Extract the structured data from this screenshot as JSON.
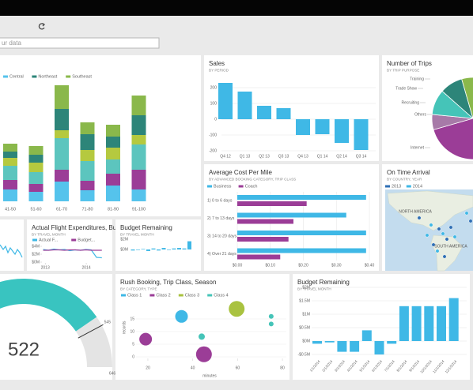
{
  "search": {
    "placeholder": "ur data"
  },
  "chart_data": [
    {
      "type": "stacked_bar",
      "categories": [
        "41-50",
        "51-60",
        "61-70",
        "71-80",
        "81-90",
        "91-100"
      ],
      "ylim": [
        0,
        150
      ],
      "series": [
        {
          "name": "Central",
          "color": "#55c3ec",
          "values": [
            15,
            12,
            25,
            14,
            20,
            15
          ]
        },
        {
          "color": "#9b3d97",
          "values": [
            12,
            10,
            15,
            12,
            15,
            25
          ]
        },
        {
          "color": "#5cc5be",
          "values": [
            18,
            15,
            40,
            25,
            18,
            32
          ]
        },
        {
          "color": "#b5c93f",
          "values": [
            10,
            12,
            10,
            14,
            15,
            12
          ]
        },
        {
          "name": "Northeast",
          "color": "#2d8579",
          "values": [
            8,
            10,
            27,
            20,
            14,
            25
          ]
        },
        {
          "name": "Southeast",
          "color": "#8ab84b",
          "values": [
            10,
            11,
            30,
            15,
            15,
            25
          ]
        }
      ]
    },
    {
      "type": "bar",
      "title": "Sales",
      "subtitle": "BY PERIOD",
      "categories": [
        "Q4 12",
        "Q1 13",
        "Q2 13",
        "Q3 13",
        "Q4 13",
        "Q1 14",
        "Q2 14",
        "Q3 14"
      ],
      "values": [
        230,
        175,
        85,
        70,
        -100,
        -95,
        -150,
        -195
      ],
      "color": "#3fb8e6",
      "ylim": [
        -240,
        250
      ],
      "yticks": [
        200,
        100,
        0,
        -100,
        -200
      ],
      "grid": true
    },
    {
      "type": "pie",
      "title": "Number of Trips",
      "subtitle": "BY TRIP PURPOSE",
      "categories": [
        "Internet",
        "Others",
        "Recruiting",
        "Trade Show",
        "Training",
        null,
        null
      ],
      "values": [
        40,
        6,
        10,
        9,
        7,
        8,
        20
      ],
      "colors": [
        "#9b3d97",
        "#a77aa8",
        "#45c4b8",
        "#2d8579",
        "#8ab84b",
        "#3fb8e6",
        "#5c6bb0"
      ]
    },
    {
      "type": "hbar",
      "title": "Average Cost Per Mile",
      "subtitle": "BY ADVANCED BOOKING CATEGORY, TRIP CLASS",
      "categories": [
        "1) 0 to 6 days",
        "2) 7 to 13 days",
        "3) 14 to 20 days",
        "4) Over 21 days"
      ],
      "series": [
        {
          "name": "Business",
          "color": "#3fb8e6",
          "values": [
            0.39,
            0.33,
            0.39,
            0.39
          ]
        },
        {
          "name": "Coach",
          "color": "#9b3d97",
          "values": [
            0.21,
            0.17,
            0.155,
            0.13
          ]
        }
      ],
      "xlim": [
        0,
        0.4
      ],
      "xticks": [
        {
          "value": 0,
          "label": "$0.00"
        },
        {
          "value": 0.1,
          "label": "$0.10"
        },
        {
          "value": 0.2,
          "label": "$0.20"
        },
        {
          "value": 0.3,
          "label": "$0.30"
        },
        {
          "value": 0.4,
          "label": "$0.40"
        }
      ],
      "grid": true
    },
    {
      "type": "map",
      "title": "On Time Arrival",
      "subtitle": "BY COUNTRY, YEAR",
      "series": [
        {
          "name": "2013",
          "color": "#2f6fb5"
        },
        {
          "name": "2014",
          "color": "#3fb8e6"
        }
      ],
      "annotations": [
        "NORTH AMERICA",
        "SOUTH AMERICA"
      ]
    },
    {
      "type": "line",
      "title": "Actual Flight Expenditures, Bu...",
      "subtitle": "BY TRAVEL MONTH",
      "x": [
        2012.95,
        2013.08,
        2013.21,
        2013.34,
        2013.47,
        2013.6,
        2013.73,
        2013.86,
        2013.99,
        2014.12,
        2014.25,
        2014.38
      ],
      "series": [
        {
          "name": "Actual F...",
          "color": "#3fb8e6",
          "values": [
            3200000,
            3000000,
            3300000,
            3100000,
            3200000,
            2900000,
            3100000,
            3000000,
            3200000,
            3100000,
            1200000,
            1100000
          ]
        },
        {
          "name": "Budget...",
          "color": "#9b3d97",
          "values": [
            3000000,
            3000000,
            3100000,
            3100000,
            3000000,
            3100000,
            3100000,
            3000000,
            3100000,
            3000000,
            3000000,
            3000000
          ]
        }
      ],
      "xlim": [
        2012.9,
        2014.5
      ],
      "xticks": [
        2013,
        2014
      ],
      "ylim": [
        0,
        4000000
      ],
      "yticks": [
        {
          "value": 4000000,
          "label": "$4M"
        },
        {
          "value": 2000000,
          "label": "$2M"
        },
        {
          "value": 0,
          "label": "$0M"
        }
      ]
    },
    {
      "type": "bar",
      "title": "Budget Remaining",
      "subtitle": "BY TRAVEL MONTH",
      "values": [
        -200000,
        -100000,
        100000,
        -300000,
        200000,
        -200000,
        300000,
        -100000,
        200000,
        300000,
        200000,
        1600000
      ],
      "color": "#3fb8e6",
      "ylim": [
        -1000000,
        2000000
      ],
      "yticks": [
        {
          "value": 2000000,
          "label": "$2M"
        },
        {
          "value": 0,
          "label": "$0M"
        }
      ]
    },
    {
      "type": "gauge",
      "value": 522,
      "target": 545,
      "max": 646,
      "color": "#39c4c0"
    },
    {
      "type": "scatter",
      "title": "Rush Booking, Trip Class, Season",
      "subtitle": "BY CATEGORY, TYPE",
      "xlabel": "minutes",
      "ylabel": "records",
      "series": [
        {
          "name": "Class 1",
          "color": "#3fb8e6",
          "x": [
            35
          ],
          "values": [
            16
          ],
          "size": [
            8
          ]
        },
        {
          "name": "Class 2",
          "color": "#9b3d97",
          "x": [
            19,
            45
          ],
          "values": [
            7,
            1
          ],
          "size": [
            8,
            10
          ]
        },
        {
          "name": "Class 3",
          "color": "#a9c23f",
          "x": [
            59.6
          ],
          "values": [
            19
          ],
          "size": [
            10
          ]
        },
        {
          "name": "Class 4",
          "color": "#45c4b8",
          "x": [
            44,
            75,
            75
          ],
          "values": [
            8,
            16,
            13
          ],
          "size": [
            4,
            3,
            3
          ]
        }
      ],
      "xlim": [
        12,
        82
      ],
      "xticks": [
        20,
        40,
        60,
        80
      ],
      "ylim": [
        0,
        20
      ],
      "yticks": [
        0,
        5,
        10,
        15
      ],
      "grid": true
    },
    {
      "type": "bar",
      "title": "Budget Remaining",
      "subtitle": "BY TRAVEL MONTH",
      "categories": [
        "1/1/2014",
        "2/1/2014",
        "3/1/2014",
        "4/1/2014",
        "5/1/2014",
        "6/1/2014",
        "7/1/2014",
        "8/1/2014",
        "9/1/2014",
        "10/1/2014",
        "11/1/2014",
        "12/1/2014"
      ],
      "values": [
        -100000,
        -50000,
        -400000,
        -400000,
        400000,
        -500000,
        -100000,
        1300000,
        1300000,
        1300000,
        1300000,
        1600000
      ],
      "color": "#3fb8e6",
      "ylim": [
        -600000,
        2100000
      ],
      "yticks": [
        {
          "value": 2000000,
          "label": "$2M"
        },
        {
          "value": 1500000,
          "label": "$1.5M"
        },
        {
          "value": 1000000,
          "label": "$1M"
        },
        {
          "value": 500000,
          "label": "$0.5M"
        },
        {
          "value": 0,
          "label": "$0M"
        },
        {
          "value": -500000,
          "label": "-$0.5M"
        }
      ],
      "grid": true
    }
  ]
}
